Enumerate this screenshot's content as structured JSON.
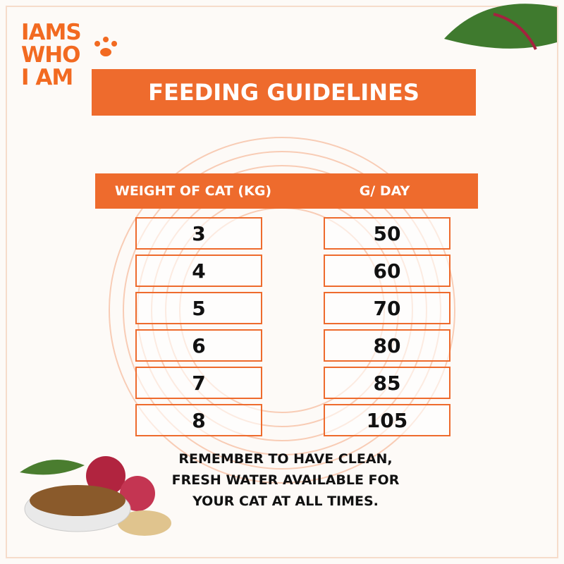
{
  "logo": {
    "brand": "IAMS",
    "line2": "WHO",
    "line3": "I AM"
  },
  "title": "FEEDING GUIDELINES",
  "table": {
    "headers": [
      "WEIGHT OF CAT (KG)",
      "G/ DAY"
    ],
    "rows": [
      [
        3,
        50
      ],
      [
        4,
        60
      ],
      [
        5,
        70
      ],
      [
        6,
        80
      ],
      [
        7,
        85
      ],
      [
        8,
        105
      ]
    ]
  },
  "note": [
    "REMEMBER TO HAVE CLEAN,",
    "FRESH WATER AVAILABLE FOR",
    "YOUR CAT AT ALL TIMES."
  ]
}
